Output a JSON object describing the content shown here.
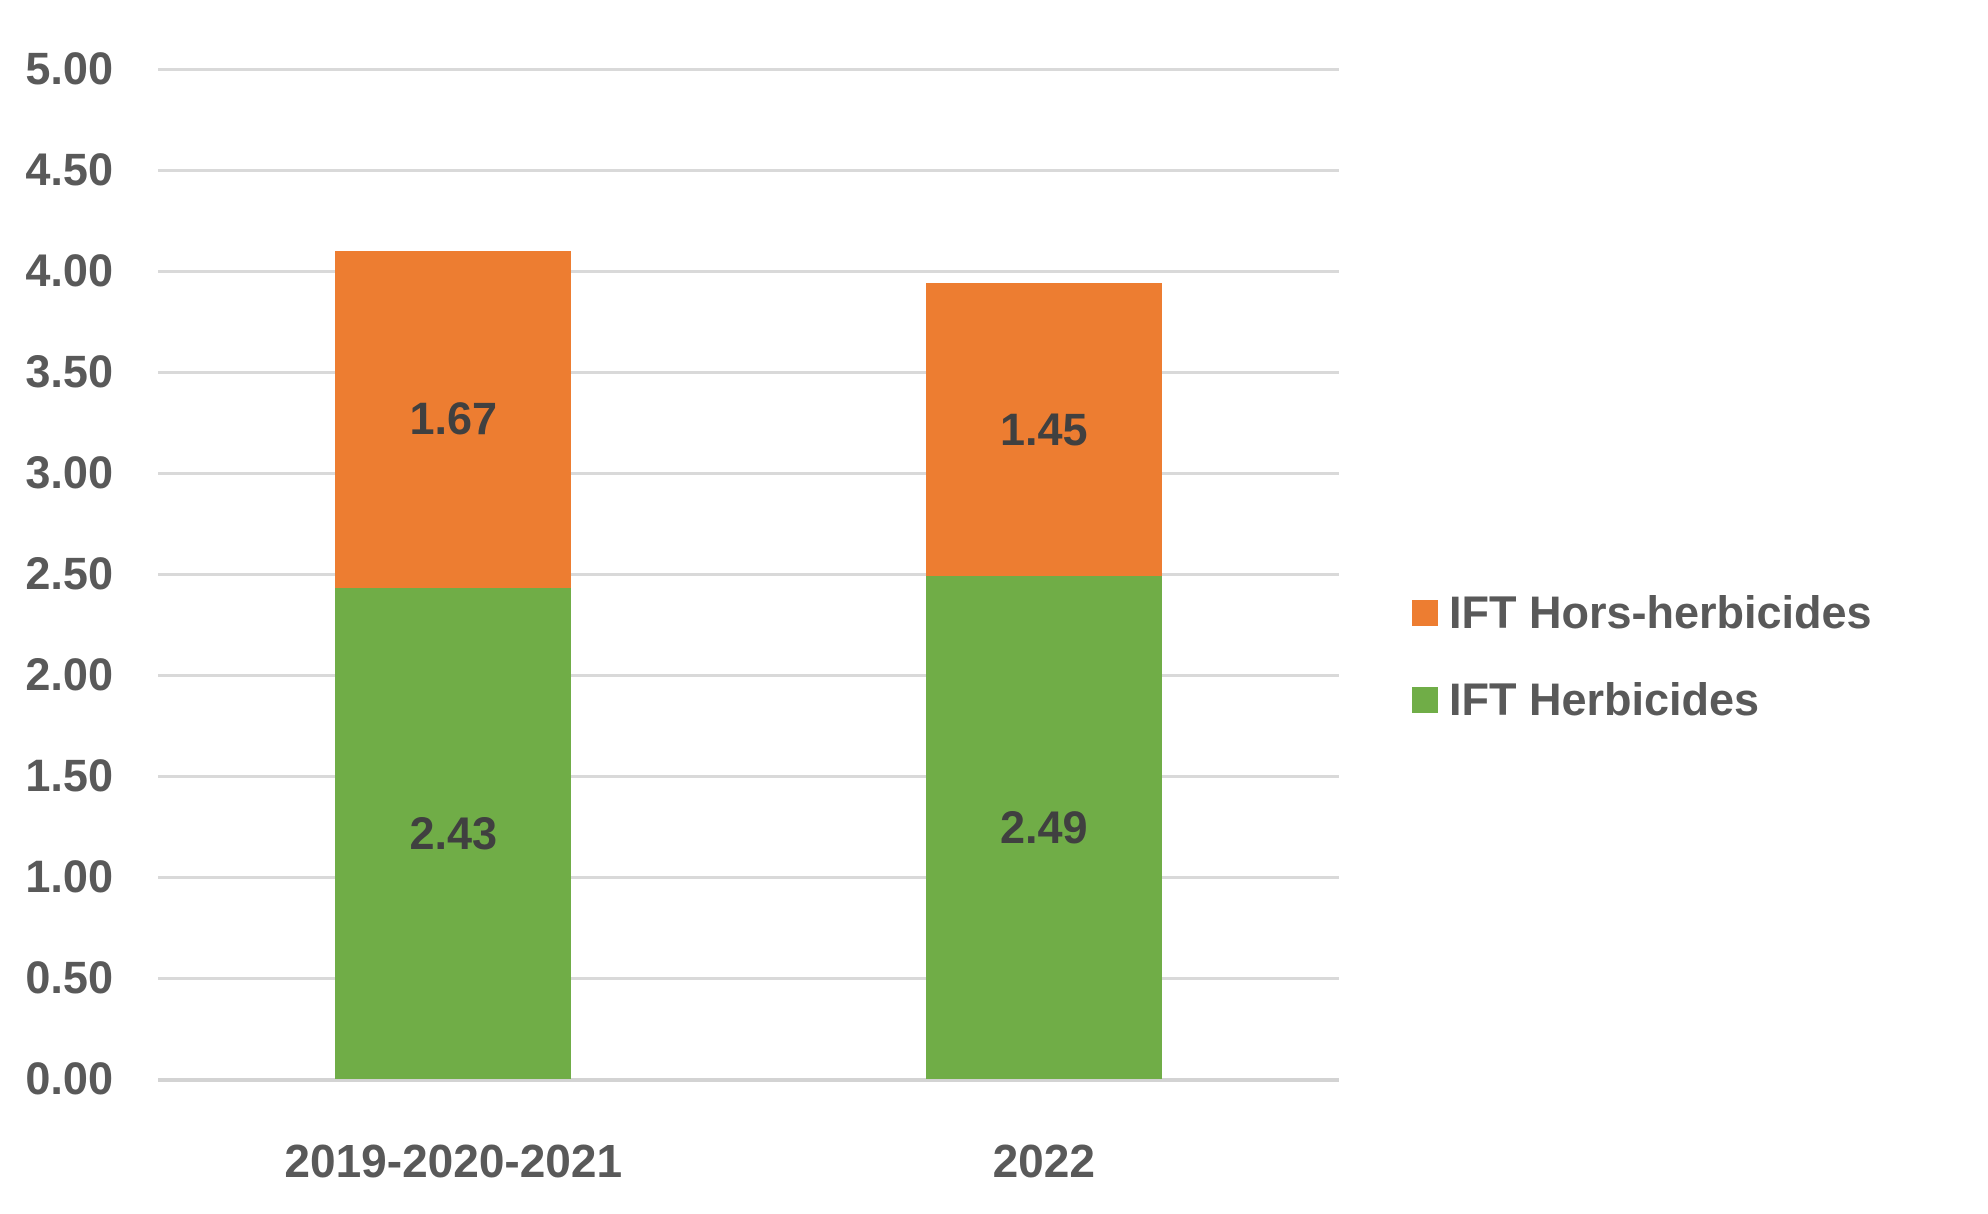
{
  "chart_data": {
    "type": "bar",
    "stacked": true,
    "title": "",
    "xlabel": "",
    "ylabel": "",
    "categories": [
      "2019-2020-2021",
      "2022"
    ],
    "series": [
      {
        "name": "IFT Herbicides",
        "color": "#70AD47",
        "values": [
          2.43,
          2.49
        ],
        "data_labels": [
          "2.43",
          "2.49"
        ]
      },
      {
        "name": "IFT Hors-herbicides",
        "color": "#ED7D31",
        "values": [
          1.67,
          1.45
        ],
        "data_labels": [
          "1.67",
          "1.45"
        ]
      }
    ],
    "totals": [
      4.1,
      3.94
    ],
    "ylim": [
      0,
      5
    ],
    "ytick_step": 0.5,
    "ytick_labels": [
      "0.00",
      "0.50",
      "1.00",
      "1.50",
      "2.00",
      "2.50",
      "3.00",
      "3.50",
      "4.00",
      "4.50",
      "5.00"
    ],
    "grid": true,
    "legend_position": "right",
    "legend": [
      {
        "label": "IFT Hors-herbicides",
        "color": "#ED7D31"
      },
      {
        "label": "IFT Herbicides",
        "color": "#70AD47"
      }
    ]
  },
  "colors": {
    "gridline": "#D9D9D9",
    "axis_text": "#595959",
    "data_label_text": "#404040",
    "background": "#FFFFFF"
  }
}
